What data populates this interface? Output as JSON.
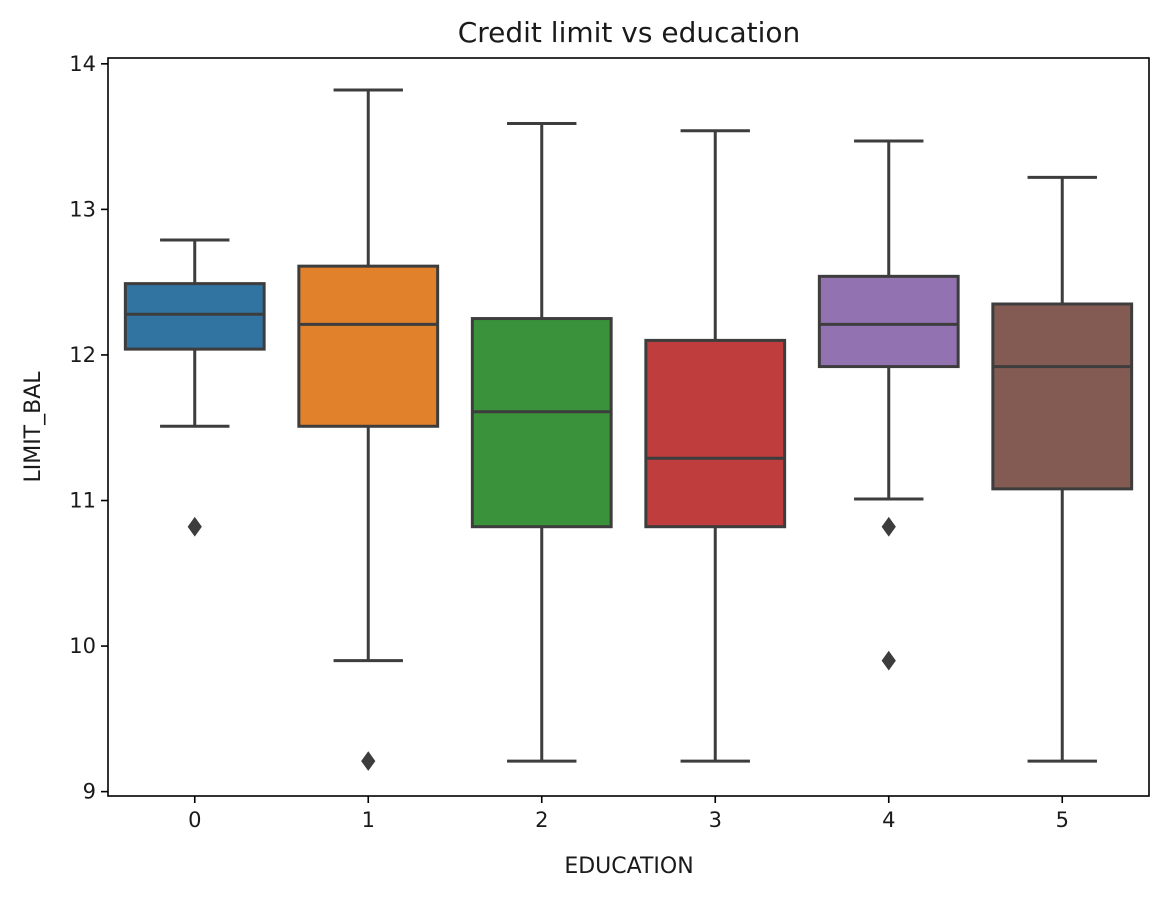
{
  "chart_data": {
    "type": "box",
    "title": "Credit limit vs education",
    "xlabel": "EDUCATION",
    "ylabel": "LIMIT_BAL",
    "ylim": [
      8.97,
      14.04
    ],
    "yticks": [
      "9",
      "10",
      "11",
      "12",
      "13",
      "14"
    ],
    "grid": false,
    "legend": "none",
    "categories": [
      "0",
      "1",
      "2",
      "3",
      "4",
      "5"
    ],
    "boxes": [
      {
        "category": "0",
        "color": "#3274a1",
        "whisker_low": 11.51,
        "q1": 12.04,
        "median": 12.28,
        "q3": 12.49,
        "whisker_high": 12.79,
        "outliers": [
          10.82
        ]
      },
      {
        "category": "1",
        "color": "#e1812c",
        "whisker_low": 9.9,
        "q1": 11.51,
        "median": 12.21,
        "q3": 12.61,
        "whisker_high": 13.82,
        "outliers": [
          9.21
        ]
      },
      {
        "category": "2",
        "color": "#3a923a",
        "whisker_low": 9.21,
        "q1": 10.82,
        "median": 11.61,
        "q3": 12.25,
        "whisker_high": 13.59,
        "outliers": []
      },
      {
        "category": "3",
        "color": "#c03d3e",
        "whisker_low": 9.21,
        "q1": 10.82,
        "median": 11.29,
        "q3": 12.1,
        "whisker_high": 13.54,
        "outliers": []
      },
      {
        "category": "4",
        "color": "#9372b2",
        "whisker_low": 11.01,
        "q1": 11.92,
        "median": 12.21,
        "q3": 12.54,
        "whisker_high": 13.47,
        "outliers": [
          10.82,
          9.9
        ]
      },
      {
        "category": "5",
        "color": "#845b53",
        "whisker_low": 9.21,
        "q1": 11.08,
        "median": 11.92,
        "q3": 12.35,
        "whisker_high": 13.22,
        "outliers": []
      }
    ]
  }
}
